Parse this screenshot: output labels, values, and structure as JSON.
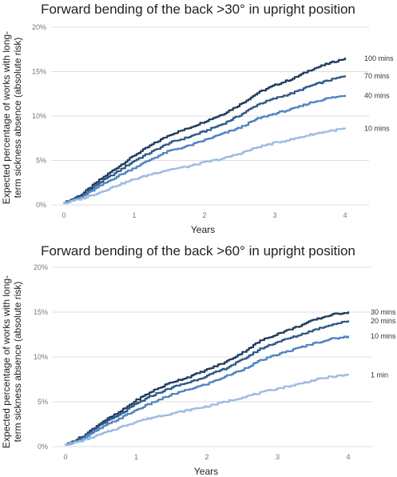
{
  "chart_data": [
    {
      "type": "line",
      "title": "Forward bending of the back >30° in upright position",
      "xlabel": "Years",
      "ylabel": "Expected percentage of works with long-term sickness absence (absolute risk)",
      "ylabel_lines": [
        "Expected percentage of works with long-",
        "term sickness absence (absolute risk)"
      ],
      "xlim": [
        0,
        4
      ],
      "ylim": [
        0,
        20
      ],
      "x_ticks": [
        "0",
        "1",
        "2",
        "3",
        "4"
      ],
      "y_ticks": [
        "0%",
        "5%",
        "10%",
        "15%",
        "20%"
      ],
      "grid": true,
      "legend": "end-labels",
      "x": [
        0,
        0.25,
        0.5,
        0.75,
        1,
        1.25,
        1.5,
        1.75,
        2,
        2.25,
        2.5,
        2.75,
        3,
        3.25,
        3.5,
        3.75,
        4
      ],
      "series": [
        {
          "name": "100 mins",
          "color": "#1f3a5a",
          "values": [
            0.2,
            1.2,
            2.8,
            4.2,
            5.6,
            6.8,
            7.9,
            8.6,
            9.4,
            10.2,
            11.3,
            12.6,
            13.5,
            14.2,
            15.2,
            15.9,
            16.5
          ]
        },
        {
          "name": "70 mins",
          "color": "#2c5887",
          "values": [
            0.2,
            1.0,
            2.5,
            3.7,
            5.0,
            6.0,
            7.0,
            7.6,
            8.3,
            9.1,
            10.1,
            11.3,
            12.0,
            12.6,
            13.4,
            14.0,
            14.5
          ]
        },
        {
          "name": "40 mins",
          "color": "#4f82c0",
          "values": [
            0.2,
            0.9,
            2.1,
            3.2,
            4.2,
            5.2,
            6.1,
            6.6,
            7.3,
            8.0,
            8.7,
            9.7,
            10.3,
            10.8,
            11.5,
            12.0,
            12.3
          ]
        },
        {
          "name": "10 mins",
          "color": "#9bbbe1",
          "values": [
            0.2,
            0.7,
            1.4,
            2.2,
            2.9,
            3.5,
            4.0,
            4.3,
            4.8,
            5.2,
            5.8,
            6.5,
            7.0,
            7.4,
            7.9,
            8.3,
            8.6
          ]
        }
      ]
    },
    {
      "type": "line",
      "title": "Forward bending of the back >60° in upright position",
      "xlabel": "Years",
      "ylabel": "Expected percentage of works with long-term sickness absence (absolute risk)",
      "ylabel_lines": [
        "Expected percentage of works with long-",
        "term sickness absence (absolute risk)"
      ],
      "xlim": [
        0,
        4
      ],
      "ylim": [
        0,
        20
      ],
      "x_ticks": [
        "0",
        "1",
        "2",
        "3",
        "4"
      ],
      "y_ticks": [
        "0%",
        "5%",
        "10%",
        "15%",
        "20%"
      ],
      "grid": true,
      "legend": "end-labels",
      "x": [
        0,
        0.25,
        0.5,
        0.75,
        1,
        1.25,
        1.5,
        1.75,
        2,
        2.25,
        2.5,
        2.75,
        3,
        3.25,
        3.5,
        3.75,
        4
      ],
      "series": [
        {
          "name": "30 mins",
          "color": "#1f3a5a",
          "values": [
            0.2,
            1.2,
            2.7,
            3.8,
            5.2,
            6.3,
            7.2,
            7.8,
            8.6,
            9.4,
            10.5,
            11.8,
            12.6,
            13.3,
            14.1,
            14.7,
            15.0
          ]
        },
        {
          "name": "20 mins",
          "color": "#2c5887",
          "values": [
            0.2,
            1.1,
            2.5,
            3.5,
            4.8,
            5.8,
            6.6,
            7.2,
            7.9,
            8.7,
            9.7,
            10.9,
            11.7,
            12.3,
            13.0,
            13.6,
            14.0
          ]
        },
        {
          "name": "10 mins",
          "color": "#4f82c0",
          "values": [
            0.2,
            0.9,
            2.1,
            3.1,
            4.1,
            5.0,
            5.8,
            6.4,
            7.0,
            7.8,
            8.6,
            9.6,
            10.3,
            10.9,
            11.5,
            12.0,
            12.3
          ]
        },
        {
          "name": "1 min",
          "color": "#9bbbe1",
          "values": [
            0.2,
            0.7,
            1.4,
            2.1,
            2.8,
            3.3,
            3.7,
            4.1,
            4.5,
            5.0,
            5.5,
            6.0,
            6.5,
            6.9,
            7.4,
            7.8,
            8.0
          ]
        }
      ]
    }
  ]
}
